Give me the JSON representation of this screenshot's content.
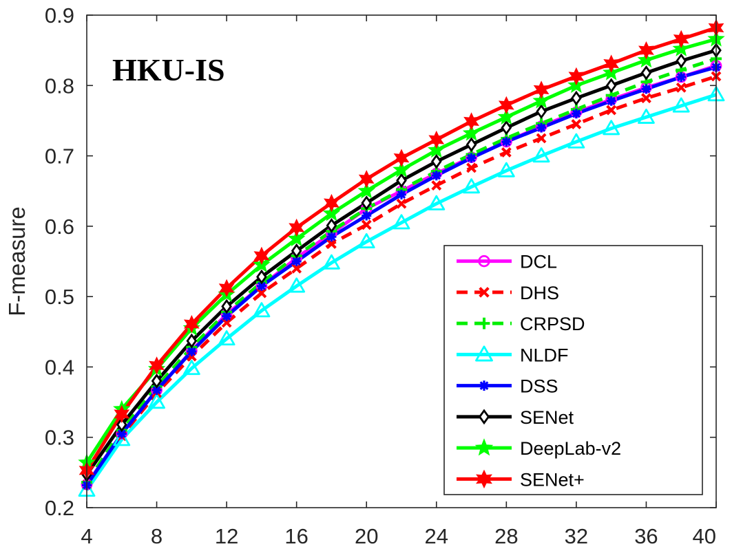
{
  "chart_data": {
    "type": "line",
    "title": "HKU-IS",
    "xlabel": "",
    "ylabel": "F-measure",
    "xlim": [
      4,
      40
    ],
    "ylim": [
      0.2,
      0.9
    ],
    "xticks": [
      4,
      8,
      12,
      16,
      20,
      24,
      28,
      32,
      36,
      40
    ],
    "yticks": [
      0.2,
      0.3,
      0.4,
      0.5,
      0.6,
      0.7,
      0.8,
      0.9
    ],
    "ytick_labels": [
      "0.2",
      "0.3",
      "0.4",
      "0.5",
      "0.6",
      "0.7",
      "0.8",
      "0.9"
    ],
    "grid": false,
    "legend_position": "bottom-right",
    "x": [
      4,
      6,
      8,
      10,
      12,
      14,
      16,
      18,
      20,
      22,
      24,
      26,
      28,
      30,
      32,
      34,
      36,
      38,
      40
    ],
    "series": [
      {
        "name": "DCL",
        "color": "#ff00ff",
        "line_style": "solid",
        "marker": "circle",
        "values": [
          0.233,
          0.305,
          0.367,
          0.423,
          0.475,
          0.515,
          0.555,
          0.59,
          0.625,
          0.65,
          0.675,
          0.698,
          0.72,
          0.742,
          0.762,
          0.78,
          0.797,
          0.812,
          0.828
        ]
      },
      {
        "name": "DHS",
        "color": "#ff0000",
        "line_style": "dashed",
        "marker": "x",
        "values": [
          0.232,
          0.302,
          0.363,
          0.415,
          0.463,
          0.505,
          0.54,
          0.575,
          0.602,
          0.632,
          0.658,
          0.683,
          0.705,
          0.725,
          0.745,
          0.765,
          0.782,
          0.797,
          0.813
        ]
      },
      {
        "name": "CRPSD",
        "color": "#00ee00",
        "line_style": "dashed",
        "marker": "plus",
        "values": [
          0.236,
          0.31,
          0.372,
          0.428,
          0.478,
          0.52,
          0.558,
          0.593,
          0.625,
          0.652,
          0.678,
          0.702,
          0.725,
          0.746,
          0.766,
          0.786,
          0.805,
          0.822,
          0.838
        ]
      },
      {
        "name": "NLDF",
        "color": "#00ffff",
        "line_style": "solid",
        "marker": "triangle",
        "values": [
          0.225,
          0.297,
          0.35,
          0.398,
          0.44,
          0.48,
          0.515,
          0.548,
          0.578,
          0.605,
          0.632,
          0.656,
          0.679,
          0.7,
          0.72,
          0.739,
          0.755,
          0.771,
          0.787
        ]
      },
      {
        "name": "DSS",
        "color": "#0000ff",
        "line_style": "solid",
        "marker": "asterisk",
        "values": [
          0.232,
          0.305,
          0.367,
          0.422,
          0.472,
          0.515,
          0.55,
          0.585,
          0.615,
          0.645,
          0.672,
          0.697,
          0.72,
          0.74,
          0.76,
          0.778,
          0.795,
          0.812,
          0.826
        ]
      },
      {
        "name": "SENet",
        "color": "#000000",
        "line_style": "solid",
        "marker": "diamond",
        "values": [
          0.247,
          0.318,
          0.38,
          0.437,
          0.486,
          0.528,
          0.565,
          0.601,
          0.633,
          0.665,
          0.692,
          0.716,
          0.74,
          0.763,
          0.782,
          0.8,
          0.818,
          0.835,
          0.85
        ]
      },
      {
        "name": "DeepLab-v2",
        "color": "#00ff00",
        "line_style": "solid",
        "marker": "star5",
        "values": [
          0.264,
          0.34,
          0.397,
          0.455,
          0.503,
          0.545,
          0.582,
          0.618,
          0.65,
          0.68,
          0.708,
          0.732,
          0.755,
          0.778,
          0.8,
          0.818,
          0.836,
          0.852,
          0.866
        ]
      },
      {
        "name": "SENet+",
        "color": "#ff0000",
        "line_style": "solid",
        "marker": "star6",
        "values": [
          0.253,
          0.333,
          0.402,
          0.461,
          0.512,
          0.558,
          0.598,
          0.633,
          0.667,
          0.697,
          0.723,
          0.749,
          0.772,
          0.794,
          0.813,
          0.831,
          0.85,
          0.866,
          0.882
        ]
      }
    ]
  }
}
